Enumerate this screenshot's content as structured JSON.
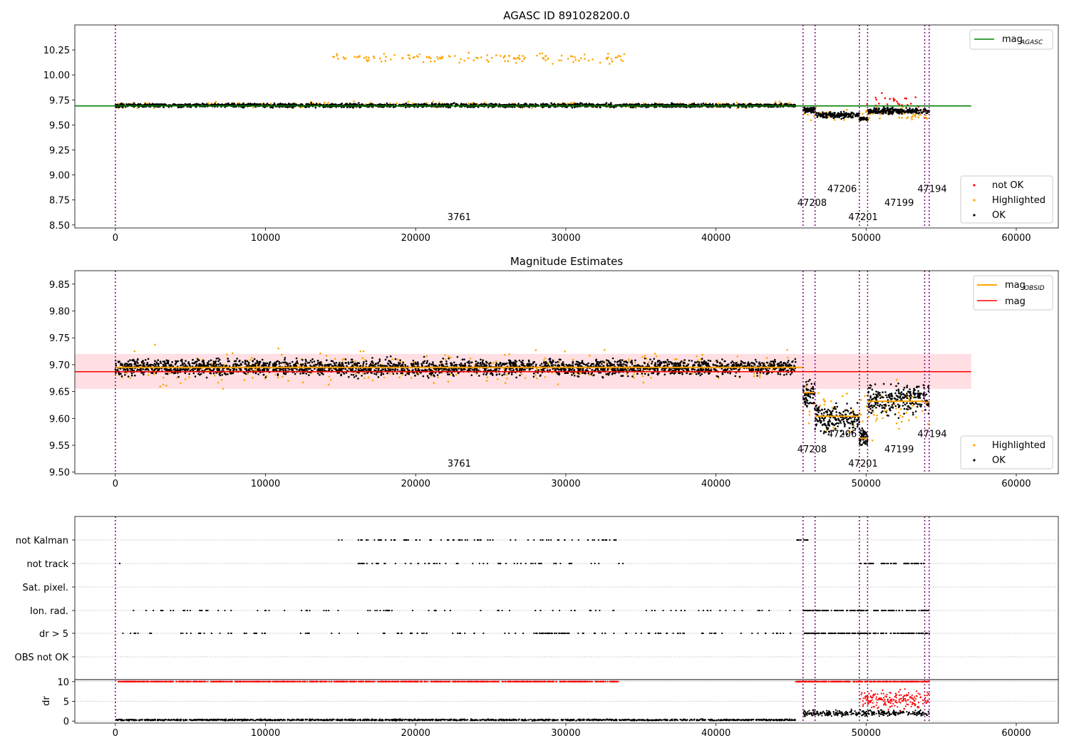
{
  "figure": {
    "title_top": "AGASC ID 891028200.0",
    "title_middle": "Magnitude Estimates"
  },
  "colors": {
    "ok": "#000000",
    "not_ok": "#ff0000",
    "highlighted": "#ffa500",
    "mag_agasc": "#008000",
    "mag": "#ff0000",
    "mag_obsid": "#ffa500",
    "obsid_boundary": "#800080",
    "band": "#ffc0c8"
  },
  "chart_data": [
    {
      "type": "scatter",
      "title": "AGASC ID 891028200.0",
      "xlim": [
        -2700,
        62800
      ],
      "ylim": [
        8.47,
        10.5
      ],
      "xticks": [
        0,
        10000,
        20000,
        30000,
        40000,
        50000,
        60000
      ],
      "xtick_labels": [
        "0",
        "10000",
        "20000",
        "30000",
        "40000",
        "50000",
        "60000"
      ],
      "yticks": [
        8.5,
        8.75,
        9.0,
        9.25,
        9.5,
        9.75,
        10.0,
        10.25
      ],
      "ytick_labels": [
        "8.50",
        "8.75",
        "9.00",
        "9.25",
        "9.50",
        "9.75",
        "10.00",
        "10.25"
      ],
      "mag_agasc": 9.69,
      "mag_agasc_x_range": [
        -2700,
        57000
      ],
      "obsid_boundaries": [
        0,
        45800,
        46600,
        49550,
        50100,
        53900,
        54200
      ],
      "obsid_labels": [
        {
          "text": "3761",
          "x": 22900,
          "y": 8.55
        },
        {
          "text": "47208",
          "x": 46400,
          "y": 8.69
        },
        {
          "text": "47206",
          "x": 48400,
          "y": 8.83
        },
        {
          "text": "47201",
          "x": 49800,
          "y": 8.55
        },
        {
          "text": "47199",
          "x": 52200,
          "y": 8.69
        },
        {
          "text": "47194",
          "x": 54400,
          "y": 8.83
        }
      ],
      "series": [
        {
          "name": "not OK",
          "segments": [
            {
              "x": [
                49550,
                54200
              ],
              "center": 9.72,
              "spread": 0.15
            }
          ]
        },
        {
          "name": "Highlighted",
          "segments": [
            {
              "x": [
                0,
                45300
              ],
              "center": 9.7,
              "spread": 0.05
            },
            {
              "x": [
                14500,
                34000
              ],
              "center": 10.17,
              "spread": 0.08
            },
            {
              "x": [
                45800,
                54200
              ],
              "center": 9.6,
              "spread": 0.12
            }
          ]
        },
        {
          "name": "OK",
          "segments": [
            {
              "x": [
                0,
                45300
              ],
              "center": 9.695,
              "spread": 0.03
            },
            {
              "x": [
                45800,
                46600
              ],
              "center": 9.65,
              "spread": 0.04
            },
            {
              "x": [
                46600,
                49550
              ],
              "center": 9.6,
              "spread": 0.05
            },
            {
              "x": [
                49550,
                50100
              ],
              "center": 9.56,
              "spread": 0.03
            },
            {
              "x": [
                50100,
                54200
              ],
              "center": 9.64,
              "spread": 0.05
            }
          ]
        }
      ],
      "legend_top": {
        "placement": "upper-right",
        "entries": [
          {
            "text": "mag",
            "sub": "AGASC"
          }
        ]
      },
      "legend_bottom": {
        "placement": "lower-right",
        "entries": [
          "not OK",
          "Highlighted",
          "OK"
        ]
      }
    },
    {
      "type": "scatter",
      "title": "Magnitude Estimates",
      "xlim": [
        -2700,
        62800
      ],
      "ylim": [
        9.497,
        9.875
      ],
      "xticks": [
        0,
        10000,
        20000,
        30000,
        40000,
        50000,
        60000
      ],
      "xtick_labels": [
        "0",
        "10000",
        "20000",
        "30000",
        "40000",
        "50000",
        "60000"
      ],
      "yticks": [
        9.5,
        9.55,
        9.6,
        9.65,
        9.7,
        9.75,
        9.8,
        9.85
      ],
      "ytick_labels": [
        "9.50",
        "9.55",
        "9.60",
        "9.65",
        "9.70",
        "9.75",
        "9.80",
        "9.85"
      ],
      "mag": 9.687,
      "mag_band": [
        9.655,
        9.72
      ],
      "mag_band_x_range": [
        -2700,
        57000
      ],
      "mag_obsid_steps": [
        {
          "x": [
            0,
            45800
          ],
          "y": 9.695
        },
        {
          "x": [
            45800,
            46600
          ],
          "y": 9.648
        },
        {
          "x": [
            46600,
            49550
          ],
          "y": 9.604
        },
        {
          "x": [
            49550,
            50100
          ],
          "y": 9.563
        },
        {
          "x": [
            50100,
            53900
          ],
          "y": 9.632
        },
        {
          "x": [
            53900,
            54200
          ],
          "y": 9.63
        }
      ],
      "obsid_boundaries": [
        0,
        45800,
        46600,
        49550,
        50100,
        53900,
        54200
      ],
      "obsid_labels": [
        {
          "text": "3761",
          "x": 22900,
          "y": 9.51
        },
        {
          "text": "47208",
          "x": 46400,
          "y": 9.537
        },
        {
          "text": "47206",
          "x": 48400,
          "y": 9.565
        },
        {
          "text": "47201",
          "x": 49800,
          "y": 9.51
        },
        {
          "text": "47199",
          "x": 52200,
          "y": 9.537
        },
        {
          "text": "47194",
          "x": 54400,
          "y": 9.565
        }
      ],
      "series": [
        {
          "name": "Highlighted",
          "segments": [
            {
              "x": [
                0,
                45300
              ],
              "center": 9.695,
              "spread": 0.05
            },
            {
              "x": [
                45800,
                54200
              ],
              "center": 9.61,
              "spread": 0.07
            }
          ]
        },
        {
          "name": "OK",
          "segments": [
            {
              "x": [
                0,
                45300
              ],
              "center": 9.695,
              "spread": 0.025
            },
            {
              "x": [
                45800,
                46600
              ],
              "center": 9.645,
              "spread": 0.04
            },
            {
              "x": [
                46600,
                49550
              ],
              "center": 9.6,
              "spread": 0.045
            },
            {
              "x": [
                49550,
                50100
              ],
              "center": 9.565,
              "spread": 0.03
            },
            {
              "x": [
                50100,
                54200
              ],
              "center": 9.635,
              "spread": 0.045
            }
          ]
        }
      ],
      "legend_top": {
        "placement": "upper-right",
        "entries": [
          {
            "text": "mag",
            "sub": "OBSID"
          },
          {
            "text": "mag"
          }
        ]
      },
      "legend_bottom": {
        "placement": "lower-right",
        "entries": [
          "Highlighted",
          "OK"
        ]
      }
    },
    {
      "type": "scatter",
      "xlim": [
        -2700,
        62800
      ],
      "xticks": [
        0,
        10000,
        20000,
        30000,
        40000,
        50000,
        60000
      ],
      "xtick_labels": [
        "0",
        "10000",
        "20000",
        "30000",
        "40000",
        "50000",
        "60000"
      ],
      "flag_rows": [
        "not Kalman",
        "not track",
        "Sat. pixel.",
        "Ion. rad.",
        "dr > 5",
        "OBS not OK"
      ],
      "flag_segments": {
        "not Kalman": [
          [
            14800,
            33500,
            0.25
          ],
          [
            45300,
            46200,
            1.0
          ]
        ],
        "not track": [
          [
            100,
            300,
            0.5
          ],
          [
            16000,
            34000,
            0.2
          ],
          [
            49550,
            50500,
            0.9
          ],
          [
            51000,
            52000,
            0.9
          ],
          [
            52500,
            54000,
            0.9
          ]
        ],
        "Sat. pixel.": [],
        "Ion. rad.": [
          [
            200,
            45000,
            0.12
          ],
          [
            45800,
            50100,
            1.0
          ],
          [
            50500,
            54200,
            0.9
          ]
        ],
        "dr > 5": [
          [
            200,
            45000,
            0.15
          ],
          [
            28000,
            30500,
            0.8
          ],
          [
            45800,
            54200,
            1.0
          ]
        ],
        "OBS not OK": []
      },
      "obsid_boundaries": [
        0,
        45800,
        46600,
        49550,
        50100,
        53900,
        54200
      ]
    },
    {
      "type": "scatter",
      "ylabel": "dr",
      "xlim": [
        -2700,
        62800
      ],
      "ylim": [
        -0.5,
        10.5
      ],
      "yticks": [
        0,
        5,
        10
      ],
      "ytick_labels": [
        "0",
        "5",
        "10"
      ],
      "xticks": [
        0,
        10000,
        20000,
        30000,
        40000,
        50000,
        60000
      ],
      "xtick_labels": [
        "0",
        "10000",
        "20000",
        "30000",
        "40000",
        "50000",
        "60000"
      ],
      "obsid_boundaries": [
        0,
        45800,
        46600,
        49550,
        50100,
        53900,
        54200
      ],
      "series": [
        {
          "name": "OK",
          "segments": [
            {
              "x": [
                0,
                45300
              ],
              "center": 0.3,
              "spread": 0.3
            },
            {
              "x": [
                45800,
                54200
              ],
              "center": 2.0,
              "spread": 1.2
            }
          ]
        },
        {
          "name": "not OK",
          "segments": [
            {
              "x": [
                200,
                33500
              ],
              "center": 10.0,
              "spread": 0.0
            },
            {
              "x": [
                45300,
                54200
              ],
              "center": 10.0,
              "spread": 0.0
            },
            {
              "x": [
                49550,
                54200
              ],
              "center": 5.5,
              "spread": 4.0
            }
          ]
        }
      ]
    }
  ]
}
